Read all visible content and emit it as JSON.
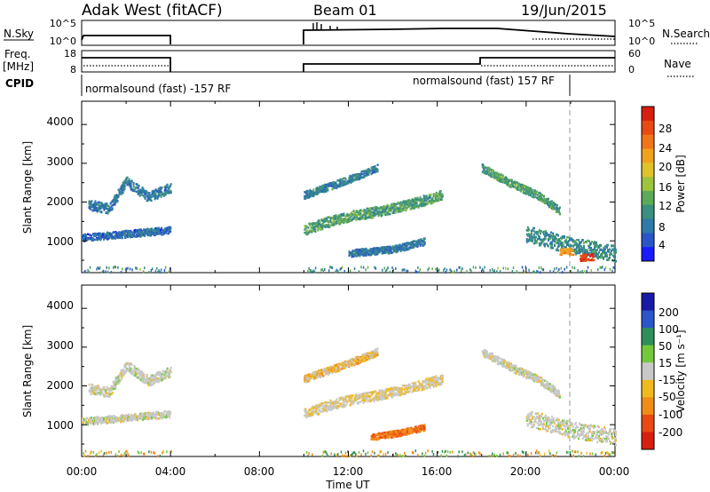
{
  "header": {
    "station": "Adak West (fitACF)",
    "beam": "Beam 01",
    "date": "19/Jun/2015"
  },
  "strips": {
    "nsky_label": "N.Sky",
    "nsearch_label": "N.Search",
    "freq_label_line1": "Freq.",
    "freq_label_line2": "[MHz]",
    "nave_label": "Nave",
    "cpid_label": "CPID",
    "nsky_ticks": [
      "10^5",
      "10^0"
    ],
    "nsearch_ticks": [
      "10^5",
      "10^0"
    ],
    "freq_ticks": [
      "18",
      "8"
    ],
    "nave_ticks": [
      "60",
      "0"
    ],
    "cpid_segments": [
      {
        "label": "normalsound (fast) -157 RF",
        "start_h": 0,
        "end_h": 4
      },
      {
        "label": "normalsound (fast) 157 RF",
        "start_h": 10,
        "end_h": 24
      }
    ]
  },
  "axes": {
    "xlabel": "Time UT",
    "x_ticks": [
      "00:00",
      "04:00",
      "08:00",
      "12:00",
      "16:00",
      "20:00",
      "00:00"
    ],
    "ylabel": "Slant Range [km]",
    "y_ticks": [
      "1000",
      "2000",
      "3000",
      "4000"
    ]
  },
  "colorbars": {
    "power_title": "Power [dB]",
    "power_ticks": [
      "4",
      "8",
      "12",
      "16",
      "20",
      "24",
      "28"
    ],
    "velocity_title": "Velocity [m s⁻¹]",
    "velocity_ticks": [
      "200",
      "100",
      "50",
      "15",
      "-15",
      "-50",
      "-100",
      "-200"
    ]
  },
  "colors": {
    "power_scale": [
      "#1a1aff",
      "#2c55c8",
      "#2e7aa8",
      "#3a8f7e",
      "#5aaa5a",
      "#9cc43c",
      "#e0c22a",
      "#f0a11e",
      "#f07418",
      "#e84a14",
      "#d81e10"
    ],
    "velocity_scale": [
      "#1a1aa8",
      "#2c55c8",
      "#2f8f5a",
      "#74c83c",
      "#c8c8c8",
      "#f0ba1e",
      "#f08c18",
      "#e84a14",
      "#d81e10"
    ],
    "frame": "#000000"
  },
  "chart_data": {
    "type": "heatmap",
    "x_range_hours": [
      0,
      24
    ],
    "y_range_km": [
      180,
      4600
    ],
    "gap_hours": [
      4,
      10
    ],
    "panels": [
      {
        "name": "Power [dB]",
        "features": [
          {
            "kind": "band",
            "t": [
              0.3,
              1.2,
              2.0,
              3.0,
              4.0
            ],
            "r": [
              1950,
              1850,
              2550,
              2150,
              2400
            ],
            "width_km": 260,
            "value": 7
          },
          {
            "kind": "band",
            "t": [
              0.0,
              2.0,
              4.0
            ],
            "r": [
              1100,
              1200,
              1300
            ],
            "width_km": 180,
            "value": 6
          },
          {
            "kind": "band",
            "t": [
              10.0,
              11.0,
              12.0,
              13.5,
              15.0,
              16.2
            ],
            "r": [
              1300,
              1500,
              1650,
              1800,
              2000,
              2200
            ],
            "width_km": 260,
            "value": 11
          },
          {
            "kind": "band",
            "t": [
              10.0,
              12.0,
              13.3
            ],
            "r": [
              2200,
              2600,
              2900
            ],
            "width_km": 190,
            "value": 8
          },
          {
            "kind": "band",
            "t": [
              12.0,
              14.0,
              15.4
            ],
            "r": [
              700,
              800,
              1000
            ],
            "width_km": 180,
            "value": 7
          },
          {
            "kind": "band",
            "t": [
              18.0,
              19.3,
              20.5,
              21.5
            ],
            "r": [
              2900,
              2500,
              2200,
              1800
            ],
            "width_km": 200,
            "value": 11
          },
          {
            "kind": "band",
            "t": [
              20.0,
              22.0,
              24.0
            ],
            "r": [
              1200,
              900,
              700
            ],
            "width_km": 420,
            "value": 9
          },
          {
            "kind": "spot",
            "t": 22.7,
            "r": 600,
            "value": 27
          },
          {
            "kind": "spot",
            "t": 21.8,
            "r": 750,
            "value": 21
          }
        ]
      },
      {
        "name": "Velocity [m s⁻¹]",
        "features": [
          {
            "kind": "band",
            "t": [
              0.3,
              1.2,
              2.0,
              3.0,
              4.0
            ],
            "r": [
              1950,
              1850,
              2550,
              2150,
              2400
            ],
            "width_km": 260,
            "value": 0
          },
          {
            "kind": "band",
            "t": [
              0.0,
              2.0,
              4.0
            ],
            "r": [
              1100,
              1200,
              1300
            ],
            "width_km": 180,
            "value": 0
          },
          {
            "kind": "band",
            "t": [
              10.0,
              11.0,
              12.0,
              13.5,
              15.0,
              16.2
            ],
            "r": [
              1300,
              1500,
              1650,
              1800,
              2000,
              2200
            ],
            "width_km": 260,
            "value": -10
          },
          {
            "kind": "band",
            "t": [
              10.0,
              12.0,
              13.3
            ],
            "r": [
              2200,
              2600,
              2900
            ],
            "width_km": 190,
            "value": -20
          },
          {
            "kind": "band",
            "t": [
              13.0,
              14.2,
              15.4
            ],
            "r": [
              700,
              800,
              950
            ],
            "width_km": 160,
            "value": -70
          },
          {
            "kind": "band",
            "t": [
              18.0,
              19.3,
              20.5,
              21.5
            ],
            "r": [
              2900,
              2500,
              2200,
              1800
            ],
            "width_km": 200,
            "value": 0
          },
          {
            "kind": "band",
            "t": [
              20.0,
              22.0,
              24.0
            ],
            "r": [
              1200,
              900,
              700
            ],
            "width_km": 420,
            "value": 0
          }
        ]
      }
    ]
  }
}
